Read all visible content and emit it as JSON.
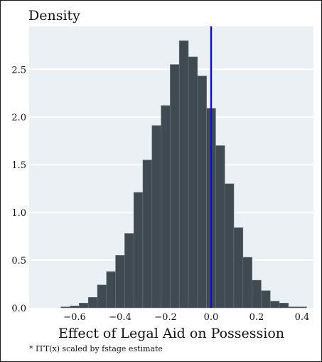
{
  "chart_data": {
    "type": "histogram",
    "ylabel": "Density",
    "xlabel": "Effect of Legal Aid on Possession",
    "note": "* ITT(x) scaled by fstage estimate",
    "xlim": [
      -0.8,
      0.45
    ],
    "ylim": [
      0,
      2.95
    ],
    "xticks": [
      -0.6,
      -0.4,
      -0.2,
      0.0,
      0.2,
      0.4
    ],
    "xtick_labels": [
      "−0.6",
      "−0.4",
      "−0.2",
      "0.0",
      "0.2",
      "0.4"
    ],
    "yticks": [
      0.0,
      0.5,
      1.0,
      1.5,
      2.0,
      2.5
    ],
    "ytick_labels": [
      "0.0",
      "0.5",
      "1.0",
      "1.5",
      "2.0",
      "2.5"
    ],
    "grid": "horizontal",
    "bin_width": 0.04,
    "bins": [
      {
        "x0": -0.66,
        "value": 0.01
      },
      {
        "x0": -0.62,
        "value": 0.02
      },
      {
        "x0": -0.58,
        "value": 0.05
      },
      {
        "x0": -0.54,
        "value": 0.11
      },
      {
        "x0": -0.5,
        "value": 0.24
      },
      {
        "x0": -0.46,
        "value": 0.38
      },
      {
        "x0": -0.42,
        "value": 0.55
      },
      {
        "x0": -0.38,
        "value": 0.78
      },
      {
        "x0": -0.34,
        "value": 1.21
      },
      {
        "x0": -0.3,
        "value": 1.55
      },
      {
        "x0": -0.26,
        "value": 1.91
      },
      {
        "x0": -0.22,
        "value": 2.12
      },
      {
        "x0": -0.18,
        "value": 2.55
      },
      {
        "x0": -0.14,
        "value": 2.8
      },
      {
        "x0": -0.1,
        "value": 2.63
      },
      {
        "x0": -0.06,
        "value": 2.43
      },
      {
        "x0": -0.02,
        "value": 2.09
      },
      {
        "x0": 0.02,
        "value": 1.7
      },
      {
        "x0": 0.06,
        "value": 1.3
      },
      {
        "x0": 0.1,
        "value": 0.84
      },
      {
        "x0": 0.14,
        "value": 0.53
      },
      {
        "x0": 0.18,
        "value": 0.29
      },
      {
        "x0": 0.22,
        "value": 0.18
      },
      {
        "x0": 0.26,
        "value": 0.07
      },
      {
        "x0": 0.3,
        "value": 0.05
      },
      {
        "x0": 0.34,
        "value": 0.01
      },
      {
        "x0": 0.38,
        "value": 0.01
      }
    ],
    "reference_line": {
      "x": 0.0,
      "color": "#1111cc"
    },
    "colors": {
      "bar_fill": "#3f4a52",
      "bar_edge": "#6b757c",
      "plot_background": "#eaf0f4",
      "gridline": "#ffffff"
    }
  }
}
